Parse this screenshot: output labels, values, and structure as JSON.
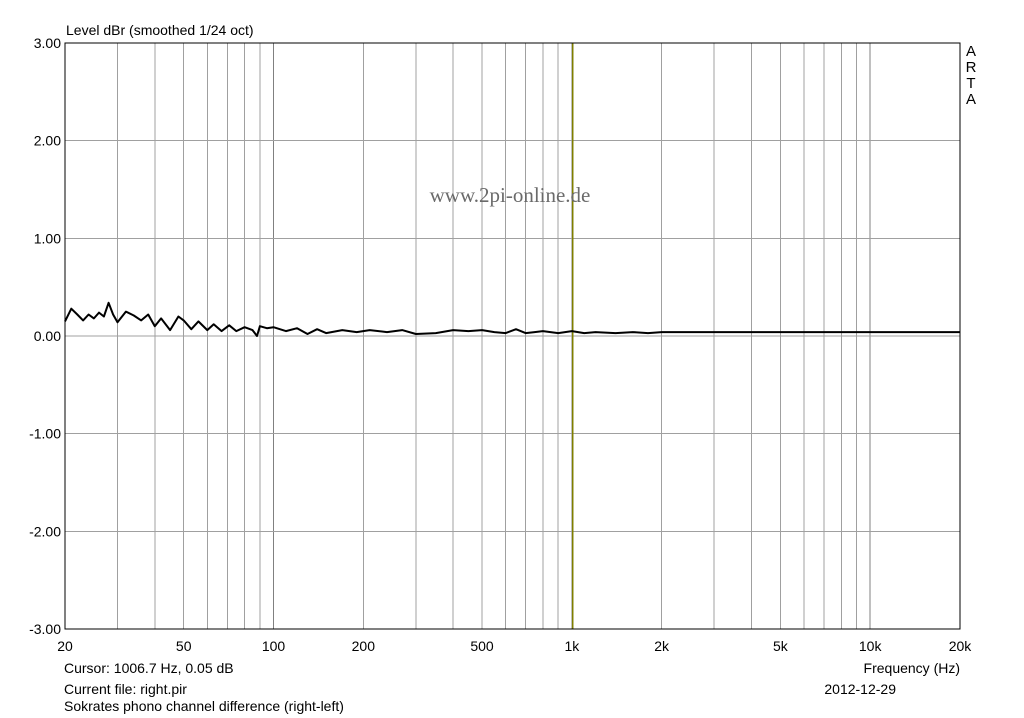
{
  "chart_data": {
    "type": "line",
    "title": "",
    "ylabel": "Level dBr (smoothed 1/24 oct)",
    "xlabel": "Frequency (Hz)",
    "x_scale": "log",
    "xlim": [
      20,
      20000
    ],
    "ylim": [
      -3.0,
      3.0
    ],
    "grid": true,
    "y_ticks": [
      3.0,
      2.0,
      1.0,
      0.0,
      -1.0,
      -2.0,
      -3.0
    ],
    "y_tick_labels": [
      "3.00",
      "2.00",
      "1.00",
      "0.00",
      "-1.00",
      "-2.00",
      "-3.00"
    ],
    "x_ticks": [
      20,
      50,
      100,
      200,
      500,
      1000,
      2000,
      5000,
      10000,
      20000
    ],
    "x_tick_labels": [
      "20",
      "50",
      "100",
      "200",
      "500",
      "1k",
      "2k",
      "5k",
      "10k",
      "20k"
    ],
    "cursor_hz": 1006.7,
    "series": [
      {
        "color": "#000000",
        "x": [
          20,
          21,
          22,
          23,
          24,
          25,
          26,
          27,
          28,
          29,
          30,
          32,
          34,
          36,
          38,
          40,
          42,
          45,
          48,
          50,
          53,
          56,
          60,
          63,
          67,
          71,
          75,
          80,
          85,
          88,
          90,
          95,
          100,
          110,
          120,
          130,
          140,
          150,
          170,
          190,
          210,
          240,
          270,
          300,
          350,
          400,
          450,
          500,
          550,
          600,
          650,
          700,
          750,
          800,
          900,
          1000,
          1100,
          1200,
          1400,
          1600,
          1800,
          2000,
          2500,
          3000,
          4000,
          5000,
          6000,
          7000,
          8000,
          10000,
          12000,
          15000,
          20000
        ],
        "y": [
          0.15,
          0.28,
          0.22,
          0.16,
          0.22,
          0.18,
          0.24,
          0.2,
          0.34,
          0.22,
          0.14,
          0.25,
          0.21,
          0.16,
          0.22,
          0.1,
          0.18,
          0.06,
          0.2,
          0.16,
          0.07,
          0.15,
          0.06,
          0.12,
          0.05,
          0.11,
          0.05,
          0.09,
          0.06,
          0.0,
          0.1,
          0.08,
          0.09,
          0.05,
          0.08,
          0.02,
          0.07,
          0.03,
          0.06,
          0.04,
          0.06,
          0.04,
          0.06,
          0.02,
          0.03,
          0.06,
          0.05,
          0.06,
          0.04,
          0.03,
          0.07,
          0.03,
          0.04,
          0.05,
          0.03,
          0.05,
          0.03,
          0.04,
          0.03,
          0.04,
          0.03,
          0.04,
          0.04,
          0.04,
          0.04,
          0.04,
          0.04,
          0.04,
          0.04,
          0.04,
          0.04,
          0.04,
          0.04
        ]
      }
    ]
  },
  "labels": {
    "ylabel": "Level dBr (smoothed 1/24 oct)",
    "xlabel": "Frequency (Hz)",
    "cursor": "Cursor: 1006.7 Hz, 0.05 dB",
    "file": "Current file: right.pir",
    "date": "2012-12-29",
    "description": "Sokrates phono channel difference (right-left)",
    "watermark": "www.2pi-online.de",
    "brand": [
      "A",
      "R",
      "T",
      "A"
    ]
  },
  "colors": {
    "grid": "#a0a0a0",
    "frame": "#000000",
    "cursor_line": "#7f7f00",
    "trace": "#000000",
    "watermark": "#6a6a6a"
  }
}
